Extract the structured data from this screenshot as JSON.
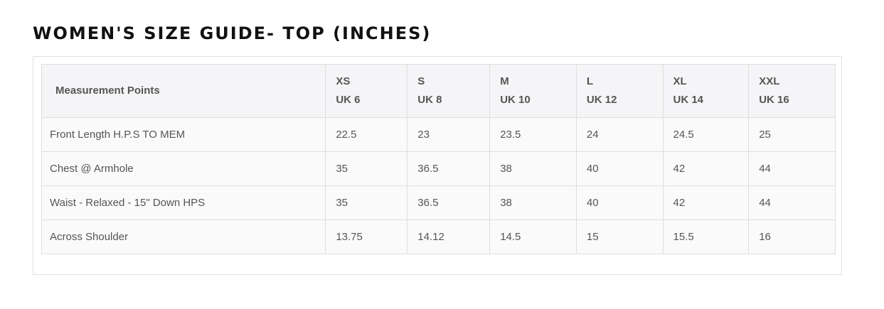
{
  "title": "WOMEN'S SIZE GUIDE- TOP (INCHES)",
  "table": {
    "header_label": "Measurement Points",
    "sizes": [
      {
        "size": "XS",
        "uk": "UK 6"
      },
      {
        "size": "S",
        "uk": "UK 8"
      },
      {
        "size": "M",
        "uk": "UK 10"
      },
      {
        "size": "L",
        "uk": "UK 12"
      },
      {
        "size": "XL",
        "uk": "UK 14"
      },
      {
        "size": "XXL",
        "uk": "UK 16"
      }
    ],
    "rows": [
      {
        "label": "Front Length H.P.S TO MEM",
        "values": [
          "22.5",
          "23",
          "23.5",
          "24",
          "24.5",
          "25"
        ]
      },
      {
        "label": "Chest @ Armhole",
        "values": [
          "35",
          "36.5",
          "38",
          "40",
          "42",
          "44"
        ]
      },
      {
        "label": "Waist - Relaxed - 15\" Down HPS",
        "values": [
          "35",
          "36.5",
          "38",
          "40",
          "42",
          "44"
        ]
      },
      {
        "label": "Across Shoulder",
        "values": [
          "13.75",
          "14.12",
          "14.5",
          "15",
          "15.5",
          "16"
        ]
      }
    ]
  }
}
